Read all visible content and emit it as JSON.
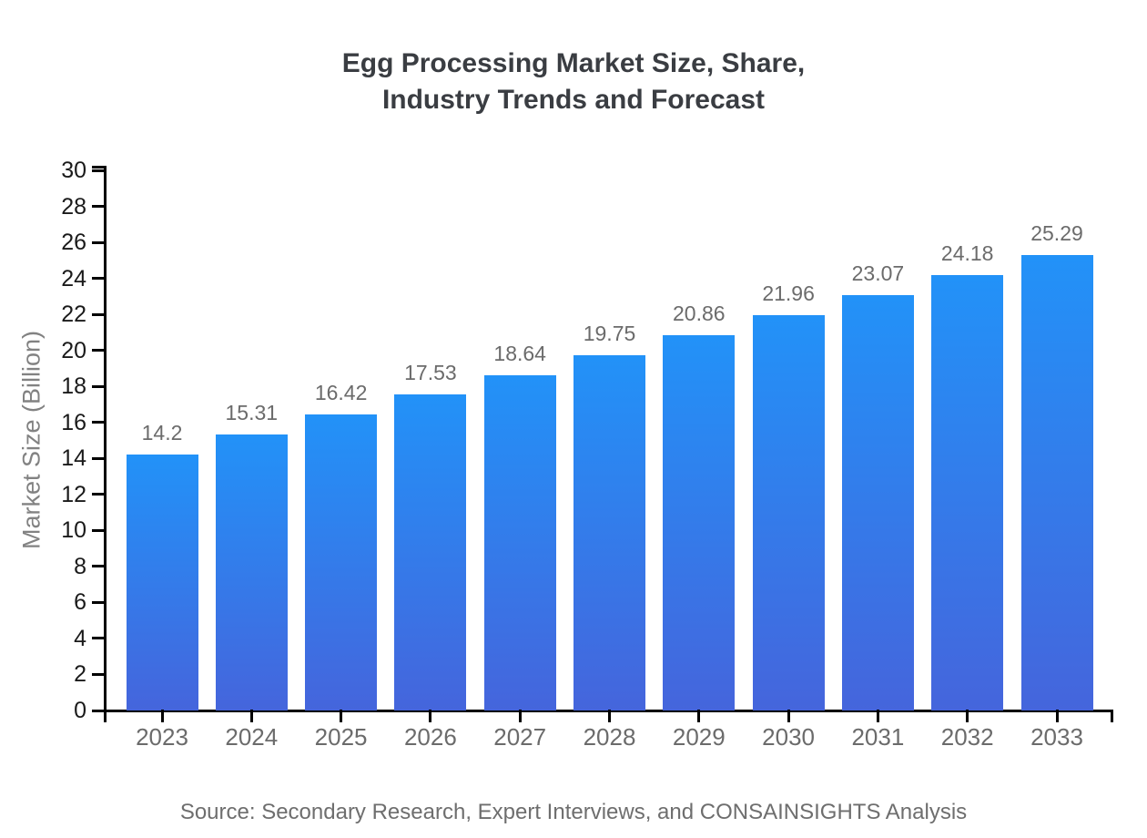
{
  "title": {
    "line1": "Egg Processing Market Size, Share,",
    "line2": "Industry Trends and Forecast"
  },
  "source": "Source: Secondary Research, Expert Interviews, and CONSAINSIGHTS Analysis",
  "chart_data": {
    "type": "bar",
    "title": "Egg Processing Market Size, Share, Industry Trends and Forecast",
    "categories": [
      "2023",
      "2024",
      "2025",
      "2026",
      "2027",
      "2028",
      "2029",
      "2030",
      "2031",
      "2032",
      "2033"
    ],
    "values": [
      14.2,
      15.31,
      16.42,
      17.53,
      18.64,
      19.75,
      20.86,
      21.96,
      23.07,
      24.18,
      25.29
    ],
    "xlabel": "",
    "ylabel": "Market Size (Billion)",
    "ylim": [
      0,
      30
    ],
    "ytick_step": 2,
    "grid": false,
    "legend": false,
    "value_labels_shown": true,
    "colors": {
      "bar_gradient_top": "#2292f8",
      "bar_gradient_bottom": "#4565dc",
      "axis": "#000000",
      "ytick_label": "#1a1a1a",
      "xtick_label": "#6b6b6b",
      "value_label": "#6b6b6b",
      "ylabel": "#828282",
      "title": "#3a3d42",
      "source": "#6e6e6e",
      "background": "#ffffff"
    }
  }
}
